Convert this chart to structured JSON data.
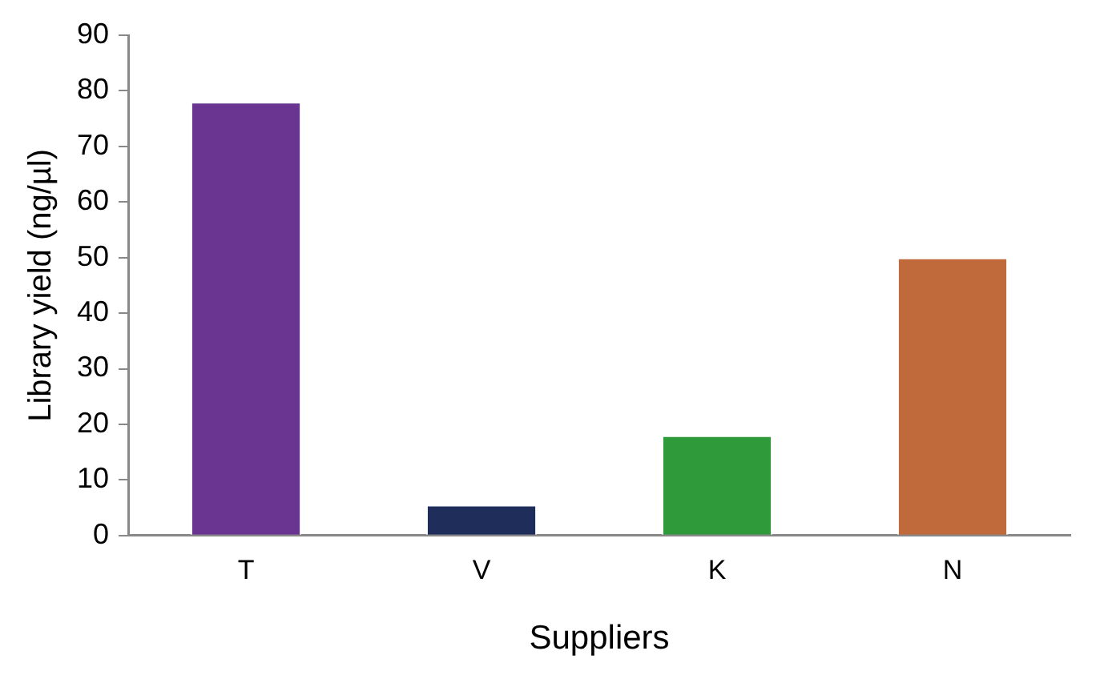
{
  "chart_data": {
    "type": "bar",
    "xlabel": "Suppliers",
    "ylabel": "Library yield (ng/µl)",
    "categories": [
      "T",
      "V",
      "K",
      "N"
    ],
    "values": [
      78,
      5.5,
      18,
      50
    ],
    "colors": [
      "#6a3590",
      "#1f2d5a",
      "#2e9a3a",
      "#c06a3c"
    ],
    "ylim": [
      0,
      90
    ],
    "yticks": [
      0,
      10,
      20,
      30,
      40,
      50,
      60,
      70,
      80,
      90
    ],
    "grid": false,
    "legend": false
  }
}
